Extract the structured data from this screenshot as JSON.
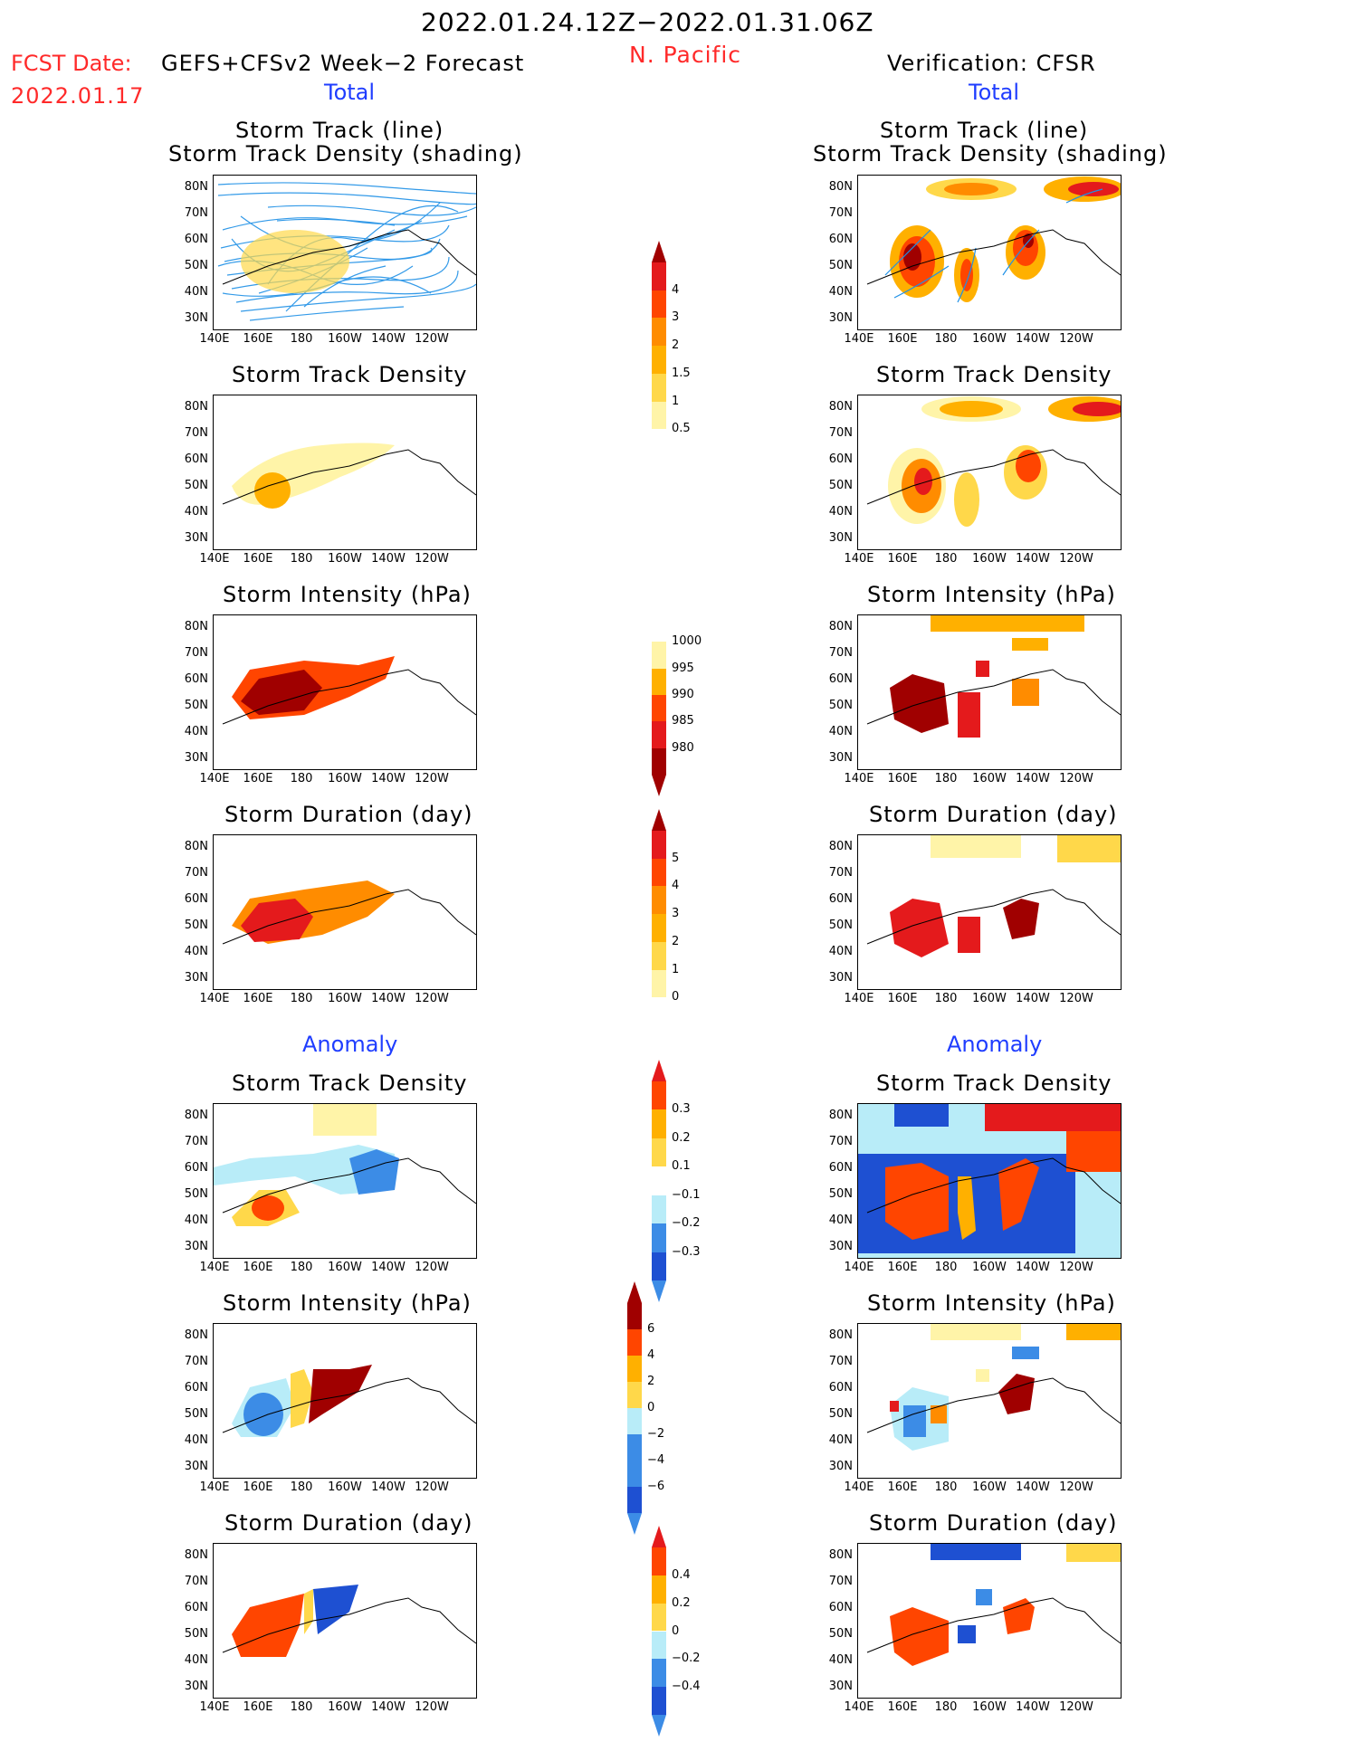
{
  "header": {
    "period": "2022.01.24.12Z−2022.01.31.06Z",
    "region": "N. Pacific",
    "fcst_label": "FCST Date:",
    "fcst_date": "2022.01.17",
    "model": "GEFS+CFSv2 Week−2 Forecast",
    "verification": "Verification: CFSR"
  },
  "sections": {
    "total": "Total",
    "anomaly": "Anomaly"
  },
  "panel_titles": {
    "track_line": "Storm Track (line)",
    "track_density_shading": "Storm Track Density (shading)",
    "track_density": "Storm Track Density",
    "intensity": "Storm Intensity (hPa)",
    "duration": "Storm Duration (day)"
  },
  "axes": {
    "lat_labels": [
      "80N",
      "70N",
      "60N",
      "50N",
      "40N",
      "30N"
    ],
    "lon_labels": [
      "140E",
      "160E",
      "180",
      "160W",
      "140W",
      "120W"
    ]
  },
  "colorbars": {
    "density_total": [
      "4",
      "3",
      "2",
      "1.5",
      "1",
      "0.5"
    ],
    "intensity_total": [
      "1000",
      "995",
      "990",
      "985",
      "980"
    ],
    "duration_total": [
      "5",
      "4",
      "3",
      "2",
      "1",
      "0"
    ],
    "density_anom": [
      "0.3",
      "0.2",
      "0.1",
      "−0.1",
      "−0.2",
      "−0.3"
    ],
    "intensity_anom": [
      "6",
      "4",
      "2",
      "0",
      "−2",
      "−4",
      "−6"
    ],
    "duration_anom": [
      "0.4",
      "0.2",
      "0",
      "−0.2",
      "−0.4"
    ]
  },
  "colors": {
    "dark_red": "#a00000",
    "red": "#e41a1c",
    "orange_red": "#ff4500",
    "orange": "#ff8c00",
    "amber": "#ffb000",
    "yellow": "#ffd84a",
    "pale_yellow": "#fff4a8",
    "light_blue": "#b8ecf8",
    "blue": "#3c8ce6",
    "deep_blue": "#1e50d2",
    "track_blue": "#1e90e6"
  }
}
